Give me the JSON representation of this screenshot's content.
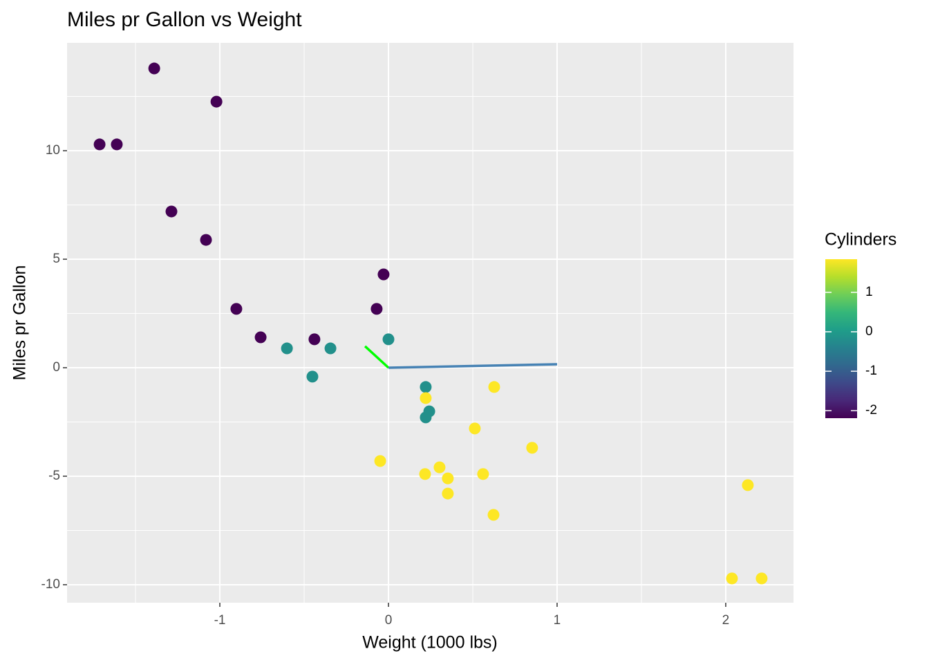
{
  "chart_data": {
    "type": "scatter",
    "title": "Miles pr Gallon vs Weight",
    "x_label": "Weight (1000 lbs)",
    "y_label": "Miles pr Gallon",
    "xlim": [
      -1.906,
      2.402
    ],
    "xticks": [
      -1,
      0,
      1,
      2
    ],
    "ylim": [
      -10.83,
      14.97
    ],
    "yticks": [
      -10,
      -5,
      0,
      5,
      10
    ],
    "grid": true,
    "color_scale": {
      "title": "Cylinders",
      "lim": [
        -2.19,
        1.84
      ],
      "ticks": [
        -2,
        -1,
        0,
        1
      ],
      "palette": "viridis"
    },
    "series": [
      {
        "x": [
          -1.389,
          -1.02,
          -1.713,
          -1.611,
          -1.287,
          -1.082,
          -0.902,
          -0.758,
          -0.439,
          -0.029,
          -0.07,
          -0.602,
          -0.344,
          -0.451,
          0.0,
          0.221,
          0.242,
          0.221,
          0.221,
          0.627,
          0.512,
          0.852,
          -0.049,
          0.217,
          0.303,
          0.352,
          0.561,
          0.352,
          0.623,
          2.131,
          2.037,
          2.213
        ],
        "values": [
          13.79,
          12.26,
          10.29,
          10.29,
          7.2,
          5.89,
          2.71,
          1.4,
          1.31,
          4.3,
          2.71,
          0.89,
          0.89,
          -0.41,
          1.31,
          -0.89,
          -2.01,
          -2.29,
          -1.4,
          -0.89,
          -2.8,
          -3.69,
          -4.3,
          -4.9,
          -4.59,
          -5.1,
          -4.9,
          -5.8,
          -6.78,
          -5.41,
          -9.71,
          -9.71
        ],
        "color_values": [
          -2.19,
          -2.19,
          -2.19,
          -2.19,
          -2.19,
          -2.19,
          -2.19,
          -2.19,
          -2.19,
          -2.19,
          -2.19,
          -0.17,
          -0.17,
          -0.17,
          -0.17,
          -0.17,
          -0.17,
          -0.17,
          1.84,
          1.84,
          1.84,
          1.84,
          1.84,
          1.84,
          1.84,
          1.84,
          1.84,
          1.84,
          1.84,
          1.84,
          1.84,
          1.84
        ]
      }
    ],
    "segments": [
      {
        "color": "#00ff00",
        "x": [
          -0.139,
          0
        ],
        "values": [
          0.99,
          0
        ]
      },
      {
        "color": "#4682b4",
        "x": [
          0,
          1
        ],
        "values": [
          0,
          0.16
        ]
      }
    ]
  }
}
